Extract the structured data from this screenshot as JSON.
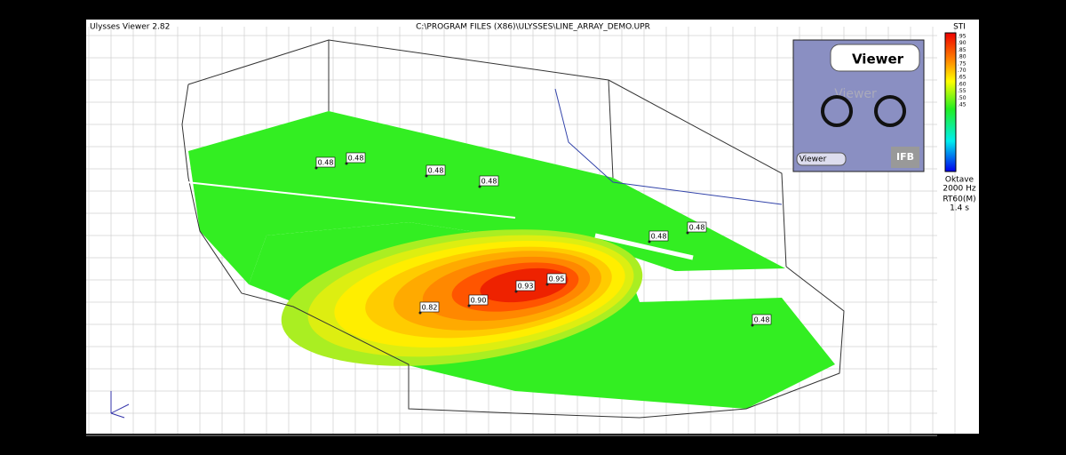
{
  "window": {
    "title": "Ulysses Viewer 2.82",
    "file_path": "C:\\PROGRAM FILES (X86)\\ULYSSES\\LINE_ARRAY_DEMO.UPR"
  },
  "legend": {
    "title": "STI",
    "ticks": [
      ".95",
      ".90",
      ".85",
      ".80",
      ".75",
      ".70",
      ".65",
      ".60",
      ".55",
      ".50",
      ".45"
    ],
    "band_label": "Oktave",
    "frequency": "2000 Hz",
    "rt_label": "RT60(M)",
    "rt_value": "1.4 s"
  },
  "logo": {
    "title": "Viewer",
    "watermark": "Viewer",
    "button": "Viewer",
    "brand": "IFB"
  },
  "points": [
    "0.48",
    "0.48",
    "0.48",
    "0.48",
    "0.48",
    "0.48",
    "0.48",
    "0.82",
    "0.90",
    "0.93",
    "0.95"
  ]
}
